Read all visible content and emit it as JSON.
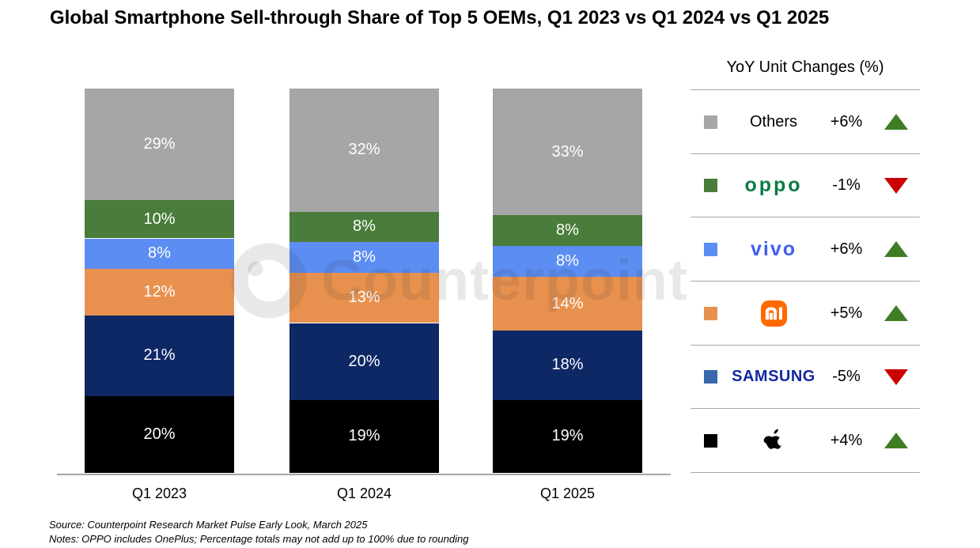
{
  "title": "Global Smartphone Sell-through Share of Top 5 OEMs, Q1 2023 vs Q1 2024 vs Q1 2025",
  "watermark_text": "Counterpoint",
  "chart_data": {
    "type": "bar",
    "stacked": true,
    "title": "Global Smartphone Sell-through Share of Top 5 OEMs, Q1 2023 vs Q1 2024 vs Q1 2025",
    "categories": [
      "Q1 2023",
      "Q1 2024",
      "Q1 2025"
    ],
    "series": [
      {
        "name": "Apple",
        "color": "#000000",
        "values": [
          20,
          19,
          19
        ]
      },
      {
        "name": "Samsung",
        "color": "#0e2765",
        "values": [
          21,
          20,
          18
        ]
      },
      {
        "name": "Xiaomi",
        "color": "#e8914f",
        "values": [
          12,
          13,
          14
        ]
      },
      {
        "name": "vivo",
        "color": "#5c8df2",
        "values": [
          8,
          8,
          8
        ]
      },
      {
        "name": "OPPO",
        "color": "#4a7c3b",
        "values": [
          10,
          8,
          8
        ]
      },
      {
        "name": "Others",
        "color": "#a6a6a6",
        "values": [
          29,
          32,
          33
        ]
      }
    ],
    "stack_order": "bottom-to-top",
    "value_suffix": "%",
    "ylim": [
      0,
      100
    ],
    "grid": false,
    "legend_position": "right"
  },
  "legend": {
    "header": "YoY Unit Changes (%)",
    "up_color": "#3e7d23",
    "down_color": "#cc0000",
    "rows": [
      {
        "name": "Others",
        "logo_text": "Others",
        "logo_color": "#000000",
        "swatch": "#a6a6a6",
        "change": "+6%",
        "direction": "up"
      },
      {
        "name": "OPPO",
        "logo_text": "oppo",
        "logo_color": "#0c7b45",
        "swatch": "#4a7c3b",
        "change": "-1%",
        "direction": "down"
      },
      {
        "name": "vivo",
        "logo_text": "vivo",
        "logo_color": "#415ff0",
        "swatch": "#5c8df2",
        "change": "+6%",
        "direction": "up"
      },
      {
        "name": "Xiaomi",
        "logo_text": "mi",
        "logo_color": "#ff6900",
        "swatch": "#e8914f",
        "change": "+5%",
        "direction": "up"
      },
      {
        "name": "Samsung",
        "logo_text": "SAMSUNG",
        "logo_color": "#1428a0",
        "swatch": "#3a68ad",
        "change": "-5%",
        "direction": "down"
      },
      {
        "name": "Apple",
        "logo_text": "",
        "logo_color": "#000000",
        "swatch": "#000000",
        "change": "+4%",
        "direction": "up"
      }
    ]
  },
  "footer": {
    "source": "Source: Counterpoint Research Market Pulse Early Look, March 2025",
    "notes": "Notes: OPPO includes OnePlus; Percentage totals may not add up to 100% due to rounding"
  }
}
